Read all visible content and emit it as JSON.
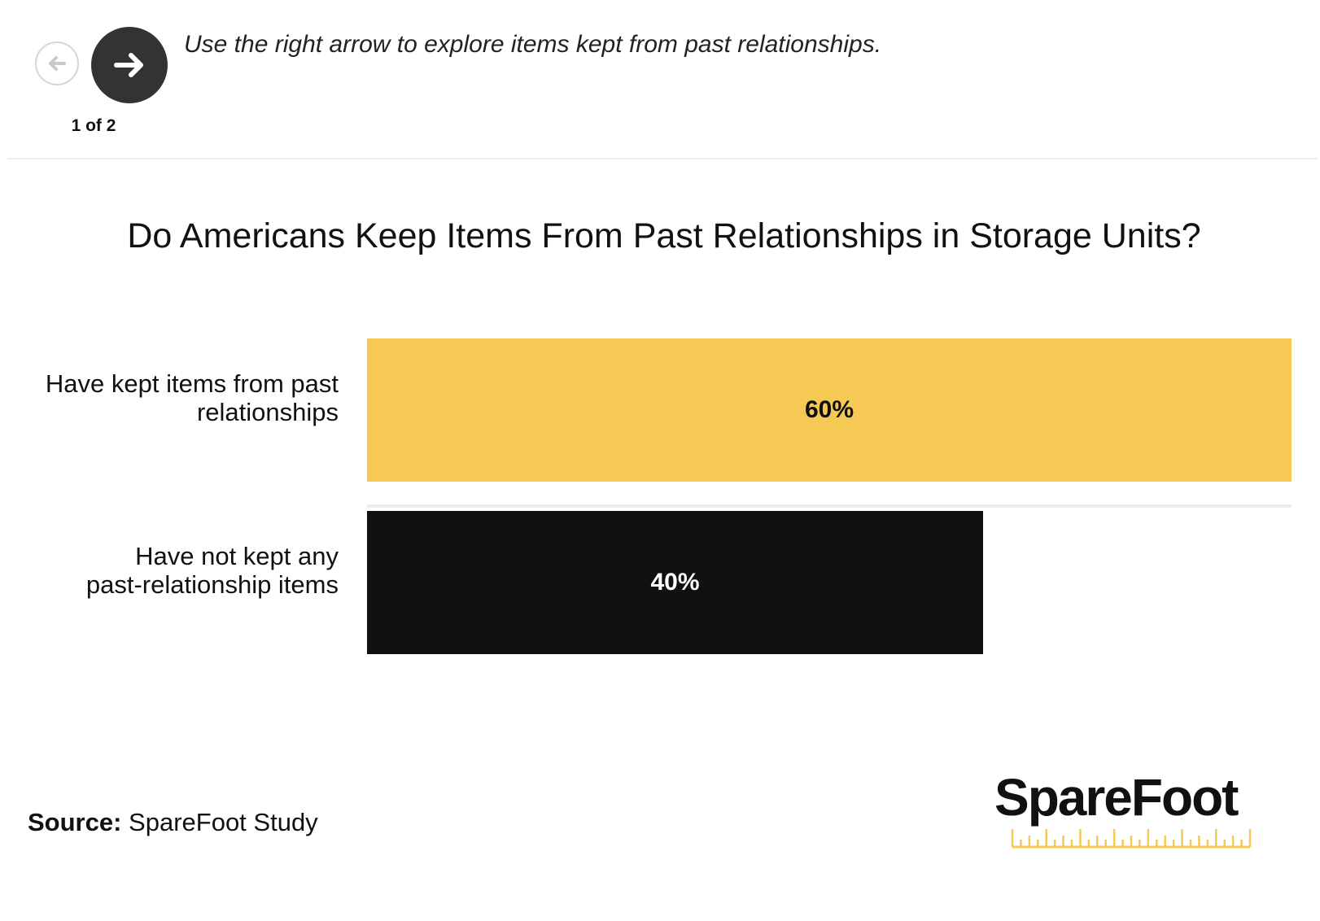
{
  "nav": {
    "counter": "1 of 2",
    "instruction": "Use the right arrow to explore items kept from past relationships.",
    "prev_icon": "arrow-left-icon",
    "next_icon": "arrow-right-icon"
  },
  "chart_data": {
    "type": "bar",
    "orientation": "horizontal",
    "title": "Do Americans Keep Items From Past Relationships in Storage Units?",
    "categories": [
      "Have kept items from past relationships",
      "Have not kept any past-relationship items"
    ],
    "label_lines": [
      [
        "Have kept items from past",
        "relationships"
      ],
      [
        "Have not kept any",
        "past-relationship items"
      ]
    ],
    "values": [
      60,
      40
    ],
    "value_labels": [
      "60%",
      "40%"
    ],
    "colors": [
      "#f5c953",
      "#111111"
    ],
    "value_label_colors": [
      "#111111",
      "#ffffff"
    ],
    "xlim": [
      0,
      60
    ],
    "grid": false,
    "legend": "none"
  },
  "source": {
    "label": "Source:",
    "text": "SpareFoot Study"
  },
  "logo": {
    "text": "SpareFoot",
    "accent": "#f5c953"
  }
}
